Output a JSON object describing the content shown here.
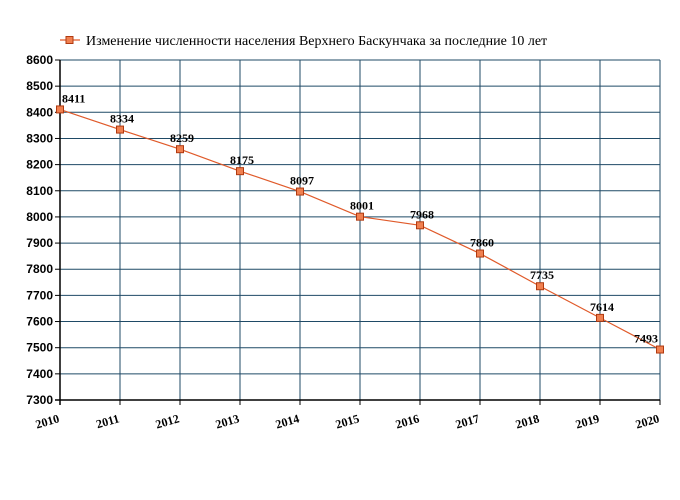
{
  "chart_data": {
    "type": "line",
    "title": "",
    "xlabel": "",
    "ylabel": "",
    "ylim": [
      7300,
      8600
    ],
    "y_ticks": [
      7300,
      7400,
      7500,
      7600,
      7700,
      7800,
      7900,
      8000,
      8100,
      8200,
      8300,
      8400,
      8500,
      8600
    ],
    "grid": true,
    "legend_position": "top",
    "x": [
      "2010",
      "2011",
      "2012",
      "2013",
      "2014",
      "2015",
      "2016",
      "2017",
      "2018",
      "2019",
      "2020"
    ],
    "series": [
      {
        "name": "Изменение численности населения Верхнего Баскунчака за последние 10 лет",
        "values": [
          8411,
          8334,
          8259,
          8175,
          8097,
          8001,
          7968,
          7860,
          7735,
          7614,
          7493
        ],
        "color": "#e05a2a",
        "marker": "square"
      }
    ],
    "colors": {
      "grid": "#1f4a66",
      "axis": "#000000",
      "line": "#e05a2a",
      "marker_fill": "#f08050",
      "marker_stroke": "#b03a10"
    }
  }
}
